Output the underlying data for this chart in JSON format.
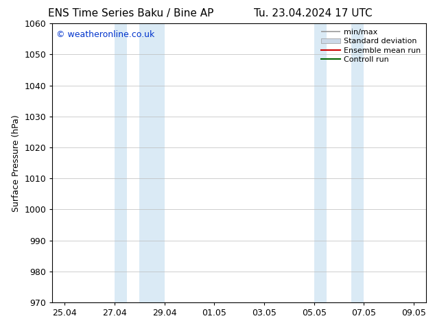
{
  "title_left": "ENS Time Series Baku / Bine AP",
  "title_right": "Tu. 23.04.2024 17 UTC",
  "ylabel": "Surface Pressure (hPa)",
  "ylim": [
    970,
    1060
  ],
  "yticks": [
    970,
    980,
    990,
    1000,
    1010,
    1020,
    1030,
    1040,
    1050,
    1060
  ],
  "background_color": "#ffffff",
  "plot_bg_color": "#ffffff",
  "watermark": "© weatheronline.co.uk",
  "watermark_color": "#0033cc",
  "shaded_bands": [
    {
      "x_start": 3.0,
      "x_end": 3.5,
      "color": "#ddeeff"
    },
    {
      "x_start": 3.5,
      "x_end": 5.0,
      "color": "#ddeeff"
    },
    {
      "x_start": 11.0,
      "x_end": 11.5,
      "color": "#ddeeff"
    },
    {
      "x_start": 11.5,
      "x_end": 13.0,
      "color": "#ddeeff"
    }
  ],
  "x_min": 0.5,
  "x_max": 15.5,
  "xtick_positions": [
    1,
    3,
    5,
    7,
    9,
    11,
    13,
    15
  ],
  "xtick_labels": [
    "25.04",
    "27.04",
    "29.04",
    "01.05",
    "03.05",
    "05.05",
    "07.05",
    "09.05"
  ],
  "legend_entries": [
    {
      "label": "min/max",
      "color": "#aaaaaa",
      "type": "line"
    },
    {
      "label": "Standard deviation",
      "color": "#ccd9e8",
      "type": "patch"
    },
    {
      "label": "Ensemble mean run",
      "color": "#cc0000",
      "type": "line"
    },
    {
      "label": "Controll run",
      "color": "#006600",
      "type": "line"
    }
  ],
  "spine_color": "#000000",
  "title_fontsize": 11,
  "axis_label_fontsize": 9,
  "tick_fontsize": 9,
  "watermark_fontsize": 9,
  "legend_fontsize": 8
}
